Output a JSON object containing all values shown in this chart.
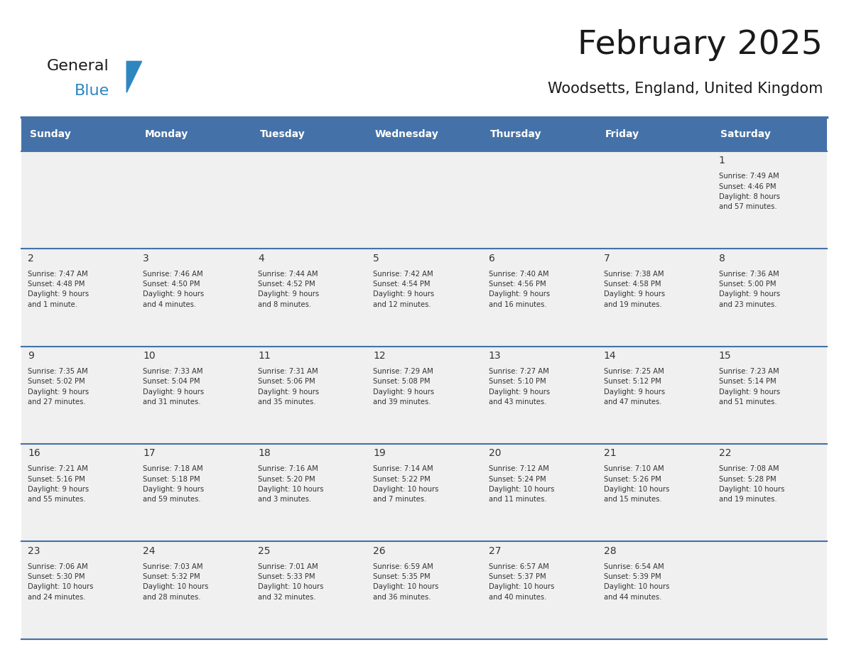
{
  "title": "February 2025",
  "subtitle": "Woodsetts, England, United Kingdom",
  "header_color": "#4472A8",
  "header_text_color": "#FFFFFF",
  "day_names": [
    "Sunday",
    "Monday",
    "Tuesday",
    "Wednesday",
    "Thursday",
    "Friday",
    "Saturday"
  ],
  "background_color": "#FFFFFF",
  "cell_bg_color": "#F0F0F0",
  "grid_line_color": "#4472A8",
  "day_number_color": "#333333",
  "info_text_color": "#333333",
  "logo_text_color": "#1a1a1a",
  "logo_blue_color": "#2E86C1",
  "title_color": "#1a1a1a",
  "subtitle_color": "#1a1a1a",
  "calendar_data": [
    [
      {
        "day": null,
        "info": ""
      },
      {
        "day": null,
        "info": ""
      },
      {
        "day": null,
        "info": ""
      },
      {
        "day": null,
        "info": ""
      },
      {
        "day": null,
        "info": ""
      },
      {
        "day": null,
        "info": ""
      },
      {
        "day": 1,
        "info": "Sunrise: 7:49 AM\nSunset: 4:46 PM\nDaylight: 8 hours\nand 57 minutes."
      }
    ],
    [
      {
        "day": 2,
        "info": "Sunrise: 7:47 AM\nSunset: 4:48 PM\nDaylight: 9 hours\nand 1 minute."
      },
      {
        "day": 3,
        "info": "Sunrise: 7:46 AM\nSunset: 4:50 PM\nDaylight: 9 hours\nand 4 minutes."
      },
      {
        "day": 4,
        "info": "Sunrise: 7:44 AM\nSunset: 4:52 PM\nDaylight: 9 hours\nand 8 minutes."
      },
      {
        "day": 5,
        "info": "Sunrise: 7:42 AM\nSunset: 4:54 PM\nDaylight: 9 hours\nand 12 minutes."
      },
      {
        "day": 6,
        "info": "Sunrise: 7:40 AM\nSunset: 4:56 PM\nDaylight: 9 hours\nand 16 minutes."
      },
      {
        "day": 7,
        "info": "Sunrise: 7:38 AM\nSunset: 4:58 PM\nDaylight: 9 hours\nand 19 minutes."
      },
      {
        "day": 8,
        "info": "Sunrise: 7:36 AM\nSunset: 5:00 PM\nDaylight: 9 hours\nand 23 minutes."
      }
    ],
    [
      {
        "day": 9,
        "info": "Sunrise: 7:35 AM\nSunset: 5:02 PM\nDaylight: 9 hours\nand 27 minutes."
      },
      {
        "day": 10,
        "info": "Sunrise: 7:33 AM\nSunset: 5:04 PM\nDaylight: 9 hours\nand 31 minutes."
      },
      {
        "day": 11,
        "info": "Sunrise: 7:31 AM\nSunset: 5:06 PM\nDaylight: 9 hours\nand 35 minutes."
      },
      {
        "day": 12,
        "info": "Sunrise: 7:29 AM\nSunset: 5:08 PM\nDaylight: 9 hours\nand 39 minutes."
      },
      {
        "day": 13,
        "info": "Sunrise: 7:27 AM\nSunset: 5:10 PM\nDaylight: 9 hours\nand 43 minutes."
      },
      {
        "day": 14,
        "info": "Sunrise: 7:25 AM\nSunset: 5:12 PM\nDaylight: 9 hours\nand 47 minutes."
      },
      {
        "day": 15,
        "info": "Sunrise: 7:23 AM\nSunset: 5:14 PM\nDaylight: 9 hours\nand 51 minutes."
      }
    ],
    [
      {
        "day": 16,
        "info": "Sunrise: 7:21 AM\nSunset: 5:16 PM\nDaylight: 9 hours\nand 55 minutes."
      },
      {
        "day": 17,
        "info": "Sunrise: 7:18 AM\nSunset: 5:18 PM\nDaylight: 9 hours\nand 59 minutes."
      },
      {
        "day": 18,
        "info": "Sunrise: 7:16 AM\nSunset: 5:20 PM\nDaylight: 10 hours\nand 3 minutes."
      },
      {
        "day": 19,
        "info": "Sunrise: 7:14 AM\nSunset: 5:22 PM\nDaylight: 10 hours\nand 7 minutes."
      },
      {
        "day": 20,
        "info": "Sunrise: 7:12 AM\nSunset: 5:24 PM\nDaylight: 10 hours\nand 11 minutes."
      },
      {
        "day": 21,
        "info": "Sunrise: 7:10 AM\nSunset: 5:26 PM\nDaylight: 10 hours\nand 15 minutes."
      },
      {
        "day": 22,
        "info": "Sunrise: 7:08 AM\nSunset: 5:28 PM\nDaylight: 10 hours\nand 19 minutes."
      }
    ],
    [
      {
        "day": 23,
        "info": "Sunrise: 7:06 AM\nSunset: 5:30 PM\nDaylight: 10 hours\nand 24 minutes."
      },
      {
        "day": 24,
        "info": "Sunrise: 7:03 AM\nSunset: 5:32 PM\nDaylight: 10 hours\nand 28 minutes."
      },
      {
        "day": 25,
        "info": "Sunrise: 7:01 AM\nSunset: 5:33 PM\nDaylight: 10 hours\nand 32 minutes."
      },
      {
        "day": 26,
        "info": "Sunrise: 6:59 AM\nSunset: 5:35 PM\nDaylight: 10 hours\nand 36 minutes."
      },
      {
        "day": 27,
        "info": "Sunrise: 6:57 AM\nSunset: 5:37 PM\nDaylight: 10 hours\nand 40 minutes."
      },
      {
        "day": 28,
        "info": "Sunrise: 6:54 AM\nSunset: 5:39 PM\nDaylight: 10 hours\nand 44 minutes."
      },
      {
        "day": null,
        "info": ""
      }
    ]
  ]
}
